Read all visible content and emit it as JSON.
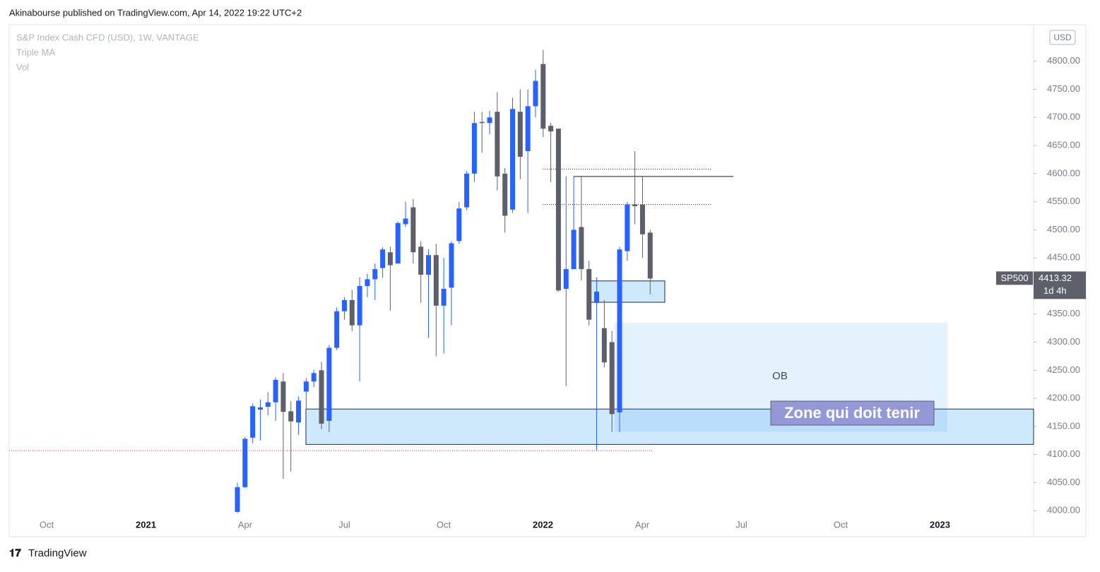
{
  "header": "Akinabourse published on TradingView.com, Apr 14, 2022 19:22 UTC+2",
  "footer": "TradingView",
  "chart_data": {
    "type": "candlestick",
    "title": "S&P Index Cash CFD (USD), 1W, VANTAGE",
    "indicators": [
      "Triple MA",
      "Vol"
    ],
    "currency": "USD",
    "x_labels": [
      "Oct",
      "2021",
      "Apr",
      "Jul",
      "Oct",
      "2022",
      "Apr",
      "Jul",
      "Oct",
      "2023"
    ],
    "up_color": "#2962ff",
    "down_color": "#5d606b",
    "open": [
      3998,
      4042,
      4130,
      4180,
      4185,
      4193,
      4230,
      4177,
      4157,
      4212,
      4230,
      4250,
      4160,
      4290,
      4355,
      4375,
      4330,
      4400,
      4412,
      4432,
      4460,
      4440,
      4510,
      4540,
      4470,
      4420,
      4455,
      4365,
      4397,
      4480,
      4540,
      4600,
      4692,
      4690,
      4710,
      4600,
      4536,
      4710,
      4640,
      4720,
      4795,
      4685,
      4680,
      4395,
      4430,
      4505,
      4430,
      4370,
      4325,
      4300,
      4175,
      4462,
      4545,
      4545,
      4495
    ],
    "high": [
      4050,
      4131,
      4191,
      4198,
      4211,
      4237,
      4245,
      4195,
      4203,
      4236,
      4251,
      4265,
      4295,
      4362,
      4380,
      4393,
      4415,
      4422,
      4440,
      4469,
      4470,
      4515,
      4550,
      4555,
      4480,
      4465,
      4475,
      4450,
      4480,
      4550,
      4605,
      4710,
      4710,
      4712,
      4745,
      4610,
      4735,
      4750,
      4750,
      4785,
      4820,
      4690,
      4680,
      4595,
      4595,
      4595,
      4445,
      4415,
      4375,
      4320,
      4470,
      4550,
      4640,
      4595,
      4500
    ],
    "low": [
      3996,
      4040,
      4120,
      4125,
      4170,
      4160,
      4057,
      4070,
      4135,
      4180,
      4220,
      4145,
      4140,
      4286,
      4340,
      4320,
      4230,
      4380,
      4375,
      4415,
      4356,
      4440,
      4505,
      4440,
      4370,
      4308,
      4275,
      4280,
      4330,
      4475,
      4535,
      4585,
      4637,
      4670,
      4570,
      4495,
      4530,
      4590,
      4530,
      4700,
      4665,
      4585,
      4390,
      4222,
      4430,
      4410,
      4330,
      4107,
      4255,
      4140,
      4140,
      4445,
      4510,
      4450,
      4385
    ],
    "close": [
      4042,
      4128,
      4186,
      4184,
      4193,
      4233,
      4176,
      4159,
      4196,
      4230,
      4245,
      4155,
      4290,
      4355,
      4375,
      4330,
      4400,
      4412,
      4430,
      4465,
      4437,
      4512,
      4520,
      4460,
      4420,
      4455,
      4365,
      4395,
      4476,
      4538,
      4600,
      4690,
      4690,
      4700,
      4595,
      4525,
      4715,
      4630,
      4720,
      4765,
      4680,
      4675,
      4392,
      4430,
      4500,
      4430,
      4340,
      4390,
      4264,
      4172,
      4465,
      4545,
      4542,
      4492,
      4413.32
    ],
    "ylim": [
      3989,
      4865
    ],
    "yticks": [
      {
        "value": 4000,
        "label": "4000.00"
      },
      {
        "value": 4050,
        "label": "4050.00"
      },
      {
        "value": 4100,
        "label": "4100.00"
      },
      {
        "value": 4150,
        "label": "4150.00"
      },
      {
        "value": 4200,
        "label": "4200.00"
      },
      {
        "value": 4250,
        "label": "4250.00"
      },
      {
        "value": 4300,
        "label": "4300.00"
      },
      {
        "value": 4350,
        "label": "4350.00"
      },
      {
        "value": 4400,
        "label": "4400.00"
      },
      {
        "value": 4450,
        "label": "4450.00"
      },
      {
        "value": 4500,
        "label": "4500.00"
      },
      {
        "value": 4550,
        "label": "4550.00"
      },
      {
        "value": 4600,
        "label": "4600.00"
      },
      {
        "value": 4650,
        "label": "4650.00"
      },
      {
        "value": 4700,
        "label": "4700.00"
      },
      {
        "value": 4750,
        "label": "4750.00"
      },
      {
        "value": 4800,
        "label": "4800.00"
      }
    ],
    "zones": [
      {
        "low": 4118,
        "high": 4181
      },
      {
        "low": 4141,
        "high": 4335
      },
      {
        "low": 4371,
        "high": 4409
      }
    ],
    "levels": [
      4595,
      4608,
      4545,
      4107
    ],
    "annotations": [
      "OB",
      "Zone qui doit tenir"
    ],
    "symbol": "SP500",
    "last_price": 4413.32,
    "countdown": "1d 4h"
  }
}
